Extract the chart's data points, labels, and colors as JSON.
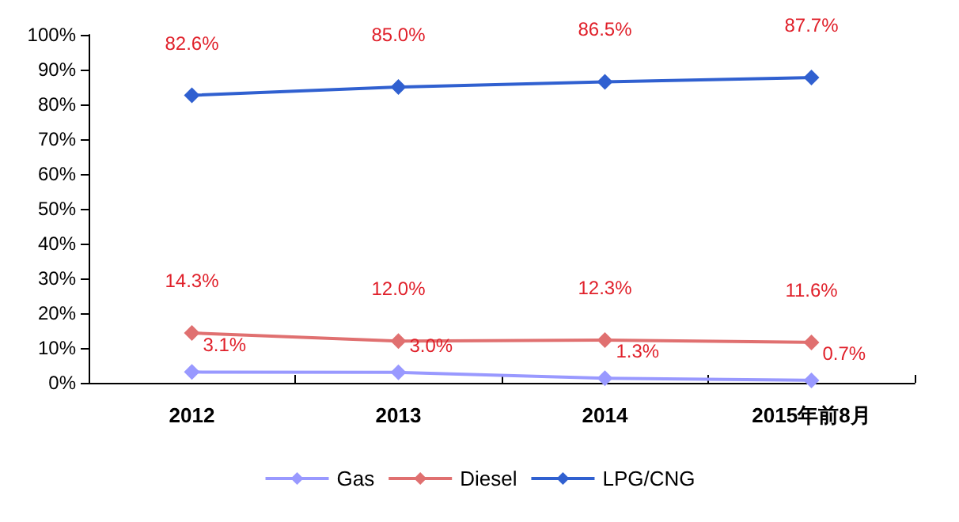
{
  "chart_data": {
    "type": "line",
    "categories": [
      "2012",
      "2013",
      "2014",
      "2015年前8月"
    ],
    "series": [
      {
        "name": "Gas",
        "color": "#9999ff",
        "values": [
          3.1,
          3.0,
          1.3,
          0.7
        ],
        "value_labels": [
          "3.1%",
          "3.0%",
          "1.3%",
          "0.7%"
        ]
      },
      {
        "name": "Diesel",
        "color": "#e07070",
        "values": [
          14.3,
          12.0,
          12.3,
          11.6
        ],
        "value_labels": [
          "14.3%",
          "12.0%",
          "12.3%",
          "11.6%"
        ]
      },
      {
        "name": "LPG/CNG",
        "color": "#3060d0",
        "values": [
          82.6,
          85.0,
          86.5,
          87.7
        ],
        "value_labels": [
          "82.6%",
          "85.0%",
          "86.5%",
          "87.7%"
        ]
      }
    ],
    "ylim": [
      0,
      100
    ],
    "yticks": [
      {
        "value": 0,
        "label": "0%"
      },
      {
        "value": 10,
        "label": "10%"
      },
      {
        "value": 20,
        "label": "20%"
      },
      {
        "value": 30,
        "label": "30%"
      },
      {
        "value": 40,
        "label": "40%"
      },
      {
        "value": 50,
        "label": "50%"
      },
      {
        "value": 60,
        "label": "60%"
      },
      {
        "value": 70,
        "label": "70%"
      },
      {
        "value": 80,
        "label": "80%"
      },
      {
        "value": 90,
        "label": "90%"
      },
      {
        "value": 100,
        "label": "100%"
      }
    ],
    "grid": false,
    "legend": "bottom",
    "marker": "diamond",
    "line_style": "solid"
  }
}
